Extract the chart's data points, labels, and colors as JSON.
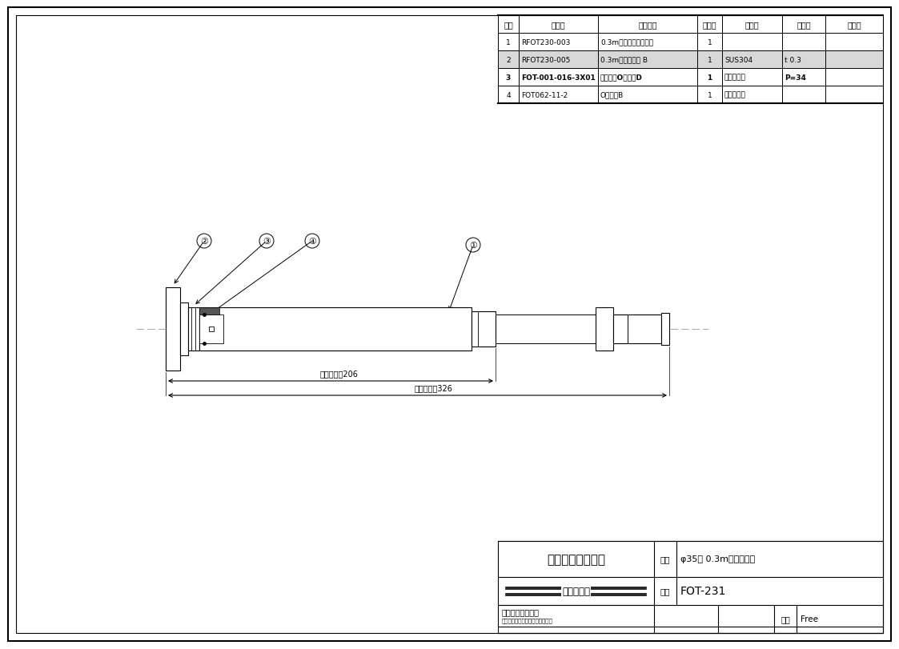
{
  "bg_color": "#ffffff",
  "border_color": "#000000",
  "table_headers": [
    "記号",
    "図　番",
    "名　　称",
    "個　数",
    "材　料",
    "寸　度",
    "備　考"
  ],
  "table_rows": [
    [
      "1",
      "RFOT230-003",
      "0.3mスライド管（組）",
      "1",
      "",
      "",
      ""
    ],
    [
      "2",
      "RFOT230-005",
      "0.3mスライド管 B",
      "1",
      "SUS304",
      "t 0.3",
      ""
    ],
    [
      "3",
      "FOT-001-016-3X01",
      "シール用OリングD",
      "1",
      "フッ素ゴム",
      "P=34",
      ""
    ],
    [
      "4",
      "FOT062-11-2",
      "OリングB",
      "1",
      "フッ素ゴム",
      "",
      ""
    ]
  ],
  "name_value": "φ35用 0.3mスライド管",
  "model_value": "FOT-231",
  "scale_value": "Free",
  "dim_min": "最小縮小時206",
  "dim_max": "最大延長時326",
  "brand_text": "リンナイ住宅機器",
  "gaikan_text": "外　観　図",
  "company_name": "リンナイ株式会社",
  "company_addr": "名古屋市中川区横池町２番２６号",
  "meisho_label": "名称",
  "keishiki_label": "型式",
  "shakudo_label": "尺度"
}
